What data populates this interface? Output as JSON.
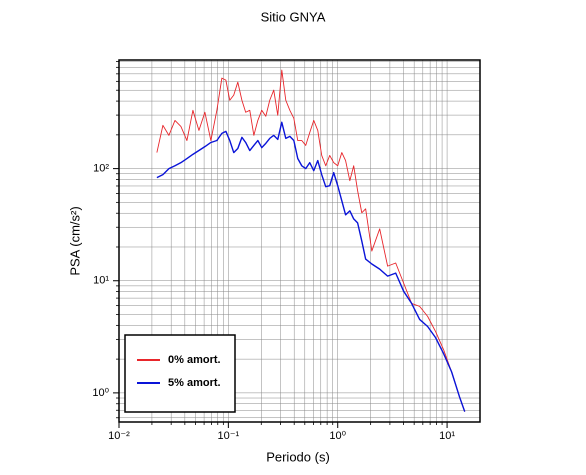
{
  "chart_data": {
    "type": "line",
    "title": "Sitio GNYA",
    "x_label": "Periodo (s)",
    "y_label": "PSA (cm/s²)",
    "log_x": true,
    "log_y": true,
    "grid": true,
    "legend": "lower left",
    "xlim": [
      0.01,
      20
    ],
    "ylim": [
      0.55,
      930
    ],
    "xticks": [
      {
        "value": 0.01,
        "label": "10⁻²"
      },
      {
        "value": 0.1,
        "label": "10⁻¹"
      },
      {
        "value": 1,
        "label": "10⁰"
      },
      {
        "value": 10,
        "label": "10¹"
      }
    ],
    "yticks": [
      {
        "value": 1,
        "label": "10⁰"
      },
      {
        "value": 10,
        "label": "10¹"
      },
      {
        "value": 100,
        "label": "10²"
      }
    ],
    "xminorticks": [
      0.02,
      0.03,
      0.04,
      0.05,
      0.06,
      0.07,
      0.08,
      0.09,
      0.2,
      0.3,
      0.4,
      0.5,
      0.6,
      0.7,
      0.8,
      0.9,
      2,
      3,
      4,
      5,
      6,
      7,
      8,
      9
    ],
    "yminorticks": [
      0.6,
      0.7,
      0.8,
      0.9,
      2,
      3,
      4,
      5,
      6,
      7,
      8,
      9,
      20,
      30,
      40,
      50,
      60,
      70,
      80,
      90,
      200,
      300,
      400,
      500,
      600,
      700,
      800,
      900
    ],
    "x": [
      0.0222,
      0.0252,
      0.0286,
      0.0325,
      0.0368,
      0.0418,
      0.0474,
      0.0538,
      0.061,
      0.0692,
      0.0785,
      0.0872,
      0.0949,
      0.103,
      0.112,
      0.122,
      0.133,
      0.144,
      0.157,
      0.171,
      0.186,
      0.202,
      0.22,
      0.239,
      0.26,
      0.283,
      0.308,
      0.335,
      0.365,
      0.397,
      0.431,
      0.469,
      0.51,
      0.555,
      0.604,
      0.657,
      0.714,
      0.777,
      0.845,
      0.919,
      1.0,
      1.09,
      1.18,
      1.29,
      1.4,
      1.52,
      1.66,
      1.8,
      2.05,
      2.42,
      2.86,
      3.39,
      4.01,
      4.74,
      5.61,
      6.64,
      7.85,
      9.29,
      11.0,
      13.0,
      14.5
    ],
    "series": [
      {
        "name": "0% amort.",
        "color": "#e8262b",
        "width": 0.9,
        "values": [
          139,
          243,
          198,
          269,
          238,
          178,
          331,
          219,
          318,
          178,
          331,
          641,
          615,
          407,
          452,
          590,
          407,
          318,
          331,
          198,
          269,
          331,
          293,
          407,
          501,
          299,
          757,
          407,
          331,
          281,
          178,
          178,
          161,
          210,
          269,
          219,
          131,
          106,
          131,
          113,
          106,
          139,
          118,
          78.0,
          106,
          63.5,
          40.3,
          43.8,
          18.4,
          29.0,
          13.5,
          14.4,
          9.5,
          6.28,
          5.91,
          4.81,
          3.52,
          2.43,
          1.54,
          0.92,
          0.68
        ]
      },
      {
        "name": "5% amort.",
        "color": "#0a14d8",
        "width": 1.4,
        "values": [
          83.0,
          88.3,
          100,
          106,
          113,
          123,
          134,
          145,
          157,
          171,
          178,
          206,
          215,
          178,
          139,
          151,
          190,
          171,
          145,
          161,
          178,
          154,
          168,
          186,
          198,
          182,
          259,
          186,
          194,
          178,
          123,
          106,
          100,
          113,
          95.9,
          118,
          88.3,
          69.0,
          70.4,
          92.1,
          70.4,
          51.6,
          38.7,
          42.0,
          35.6,
          32.8,
          22.6,
          15.6,
          14.1,
          12.7,
          11.0,
          11.7,
          8.05,
          6.28,
          4.52,
          3.91,
          3.11,
          2.24,
          1.54,
          0.92,
          0.68
        ]
      }
    ]
  }
}
